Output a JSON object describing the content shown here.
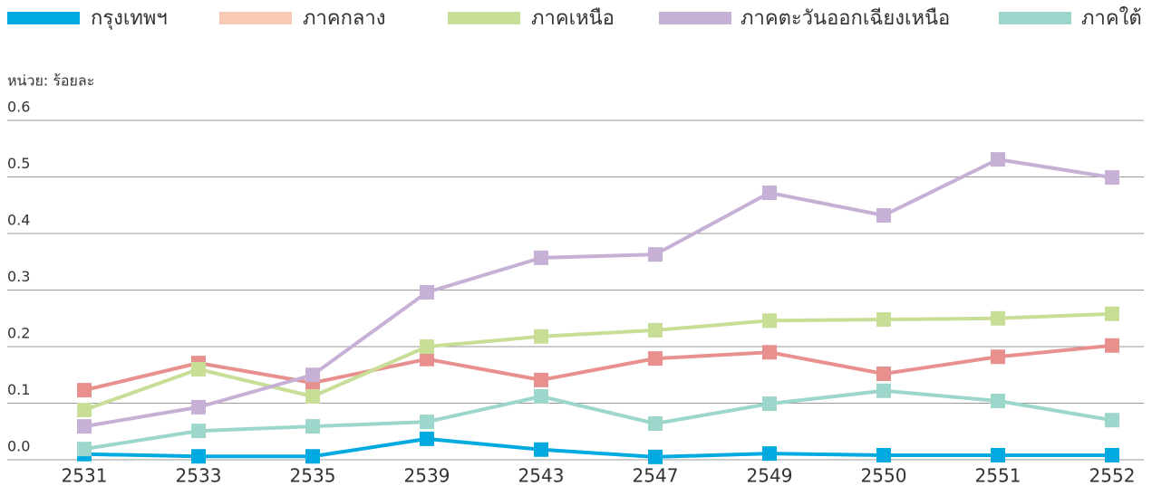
{
  "chart_data": {
    "type": "line",
    "y_axis_label": "หน่วย: ร้อยละ",
    "categories": [
      "2531",
      "2533",
      "2535",
      "2539",
      "2543",
      "2547",
      "2549",
      "2550",
      "2551",
      "2552"
    ],
    "series": [
      {
        "name": "กรุงเทพฯ",
        "color": "#00a9e0",
        "values": [
          0.01,
          0.006,
          0.006,
          0.037,
          0.018,
          0.005,
          0.011,
          0.008,
          0.008,
          0.008
        ]
      },
      {
        "name": "ภาคกลาง",
        "color": "#e8908e",
        "legend_color": "#f9c9b6",
        "values": [
          0.123,
          0.171,
          0.136,
          0.178,
          0.141,
          0.179,
          0.19,
          0.152,
          0.182,
          0.202
        ]
      },
      {
        "name": "ภาคเหนือ",
        "color": "#c8dd96",
        "values": [
          0.088,
          0.16,
          0.112,
          0.2,
          0.218,
          0.229,
          0.246,
          0.248,
          0.25,
          0.258
        ]
      },
      {
        "name": "ภาคตะวันออกเฉียงเหนือ",
        "color": "#c7b0d6",
        "values": [
          0.059,
          0.093,
          0.15,
          0.296,
          0.357,
          0.363,
          0.472,
          0.432,
          0.531,
          0.499
        ]
      },
      {
        "name": "ภาคใต้",
        "color": "#9dd6cb",
        "values": [
          0.019,
          0.051,
          0.059,
          0.067,
          0.112,
          0.064,
          0.099,
          0.122,
          0.104,
          0.07
        ]
      }
    ],
    "ylim": [
      0,
      0.6
    ],
    "yticks": [
      {
        "value": 0,
        "label": "0.0"
      },
      0.1,
      0.2,
      0.3,
      0.4,
      0.5,
      0.6
    ],
    "grid": true
  }
}
